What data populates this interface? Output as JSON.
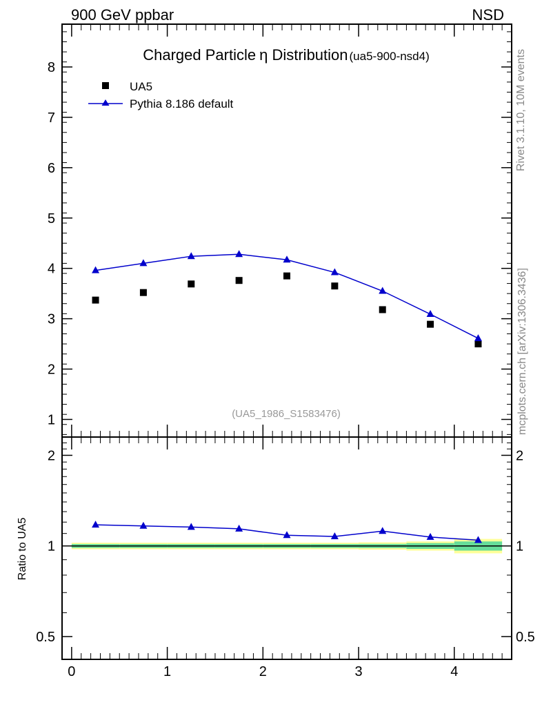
{
  "header": {
    "left": "900 GeV ppbar",
    "right": "NSD"
  },
  "side_text": {
    "rivet": "Rivet 3.1.10,  10M events",
    "mcplots": "mcplots.cern.ch [arXiv:1306.3436]"
  },
  "chart_data": [
    {
      "type": "scatter",
      "title": "Charged Particle",
      "title_symbol": "η",
      "title_suffix": " Distribution",
      "title_tag": "(ua5-900-nsd4)",
      "analysis": "(UA5_1986_S1583476)",
      "xlabel": "",
      "ylabel": "",
      "xlim": [
        -0.1,
        4.6
      ],
      "ylim": [
        0.65,
        8.85
      ],
      "y_ticks": [
        1,
        2,
        3,
        4,
        5,
        6,
        7,
        8
      ],
      "legend_placement": "top-left",
      "series": [
        {
          "name": "UA5",
          "marker": "square",
          "color": "#000000",
          "x": [
            0.25,
            0.75,
            1.25,
            1.75,
            2.25,
            2.75,
            3.25,
            3.75,
            4.25
          ],
          "y": [
            3.37,
            3.52,
            3.69,
            3.76,
            3.85,
            3.65,
            3.18,
            2.89,
            2.5
          ]
        },
        {
          "name": "Pythia 8.186 default",
          "marker": "triangle",
          "color": "#0000cc",
          "x": [
            0.25,
            0.75,
            1.25,
            1.75,
            2.25,
            2.75,
            3.25,
            3.75,
            4.25
          ],
          "y": [
            3.96,
            4.1,
            4.24,
            4.28,
            4.17,
            3.92,
            3.55,
            3.09,
            2.61
          ]
        }
      ]
    },
    {
      "type": "line",
      "title": "",
      "xlabel": "",
      "ylabel": "Ratio to UA5",
      "xlim": [
        -0.1,
        4.6
      ],
      "ylim": [
        0.42,
        2.3
      ],
      "y_ticks": [
        0.5,
        1,
        2
      ],
      "y_tick_labels": [
        "0.5",
        "1",
        "2"
      ],
      "x_ticks": [
        0,
        1,
        2,
        3,
        4
      ],
      "reference_line": 1,
      "band_colors": {
        "outer": "#ffff99",
        "inner": "#66dd99"
      },
      "bands": [
        {
          "x0": 0.0,
          "x1": 0.5,
          "outer": [
            0.975,
            1.025
          ],
          "inner": [
            0.985,
            1.015
          ]
        },
        {
          "x0": 0.5,
          "x1": 1.0,
          "outer": [
            0.975,
            1.025
          ],
          "inner": [
            0.985,
            1.015
          ]
        },
        {
          "x0": 1.0,
          "x1": 1.5,
          "outer": [
            0.975,
            1.025
          ],
          "inner": [
            0.985,
            1.015
          ]
        },
        {
          "x0": 1.5,
          "x1": 2.0,
          "outer": [
            0.975,
            1.025
          ],
          "inner": [
            0.985,
            1.015
          ]
        },
        {
          "x0": 2.0,
          "x1": 2.5,
          "outer": [
            0.975,
            1.025
          ],
          "inner": [
            0.985,
            1.015
          ]
        },
        {
          "x0": 2.5,
          "x1": 3.0,
          "outer": [
            0.975,
            1.025
          ],
          "inner": [
            0.985,
            1.015
          ]
        },
        {
          "x0": 3.0,
          "x1": 3.5,
          "outer": [
            0.972,
            1.028
          ],
          "inner": [
            0.984,
            1.016
          ]
        },
        {
          "x0": 3.5,
          "x1": 4.0,
          "outer": [
            0.965,
            1.035
          ],
          "inner": [
            0.978,
            1.022
          ]
        },
        {
          "x0": 4.0,
          "x1": 4.5,
          "outer": [
            0.945,
            1.055
          ],
          "inner": [
            0.965,
            1.035
          ]
        }
      ],
      "series": [
        {
          "name": "Pythia 8.186 default",
          "marker": "triangle",
          "color": "#0000cc",
          "x": [
            0.25,
            0.75,
            1.25,
            1.75,
            2.25,
            2.75,
            3.25,
            3.75,
            4.25
          ],
          "y": [
            1.175,
            1.165,
            1.155,
            1.14,
            1.085,
            1.075,
            1.12,
            1.07,
            1.045
          ]
        }
      ]
    }
  ]
}
